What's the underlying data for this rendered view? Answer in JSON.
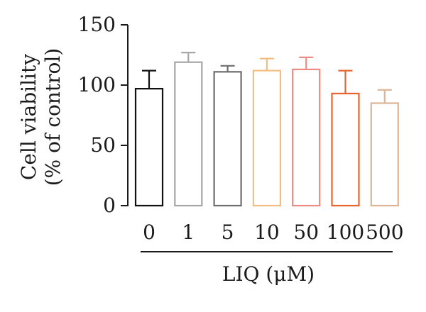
{
  "chart_data": {
    "type": "bar",
    "categories": [
      "0",
      "1",
      "5",
      "10",
      "50",
      "100",
      "500"
    ],
    "values": [
      97,
      119,
      111,
      112,
      113,
      93,
      85
    ],
    "errors": [
      15,
      8,
      5,
      10,
      10,
      19,
      11
    ],
    "bar_colors": [
      "#111111",
      "#a6a6a6",
      "#6e6e6e",
      "#f4be83",
      "#ec8b86",
      "#e8642f",
      "#dcb596"
    ],
    "ylabel_line1": "Cell viability",
    "ylabel_line2": "(% of control)",
    "xlabel": "LIQ (μM)",
    "yticks": [
      "0",
      "50",
      "100",
      "150"
    ],
    "ylim": [
      0,
      150
    ],
    "grid": false,
    "legend": "none"
  }
}
